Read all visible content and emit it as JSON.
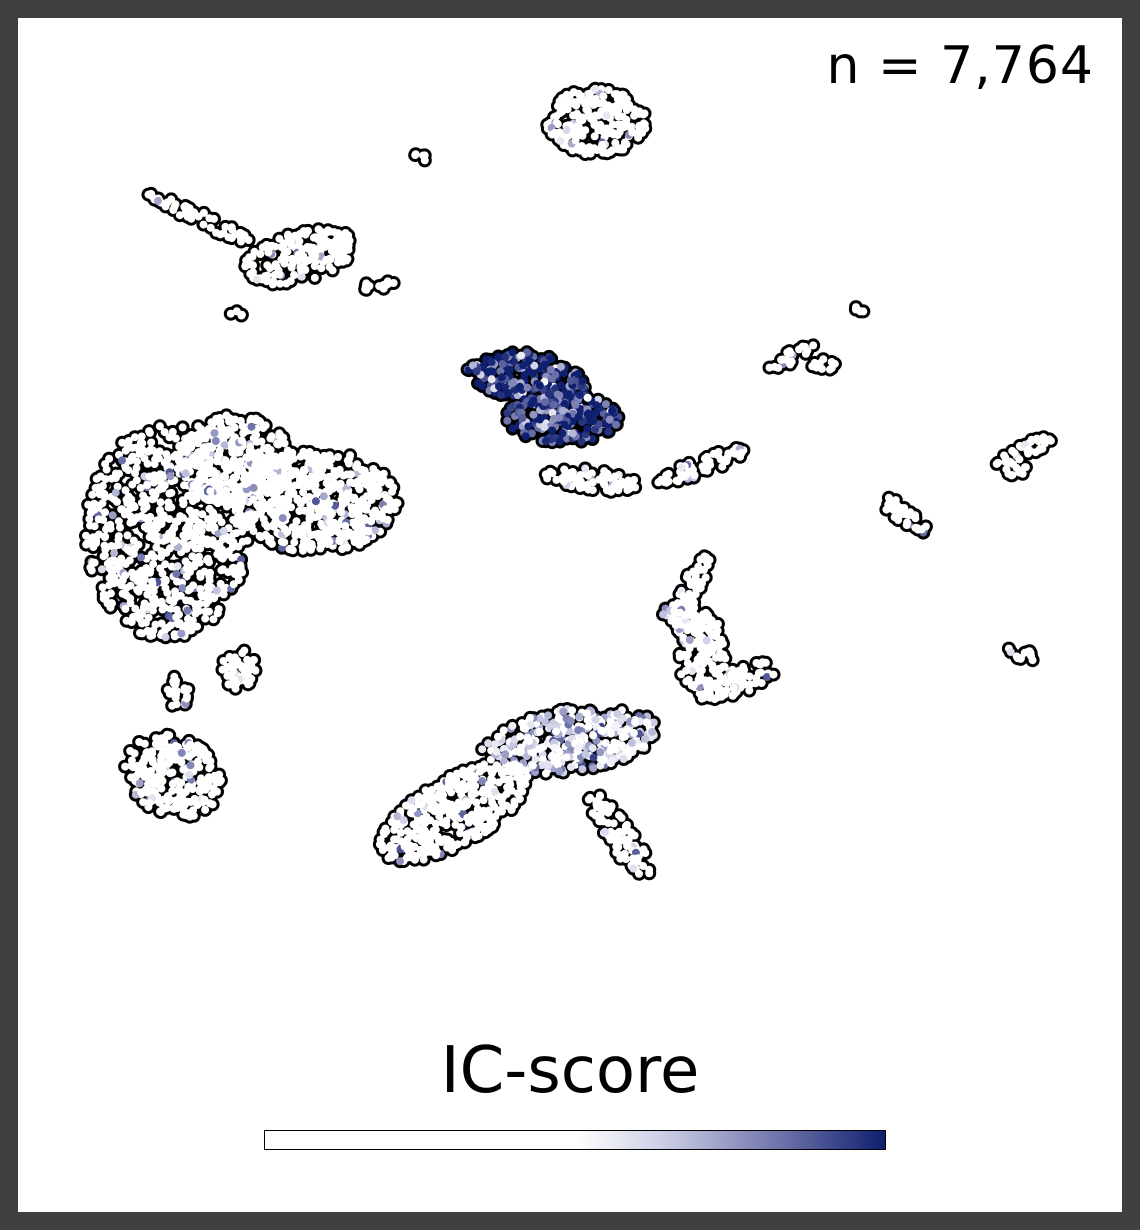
{
  "chart_data": {
    "type": "scatter",
    "title": "",
    "xlabel": "",
    "ylabel": "",
    "grid": false,
    "annotation": "n = 7,764",
    "colorbar": {
      "label": "IC-score",
      "colors": [
        "#ffffff",
        "#ffffff",
        "#c9cbe3",
        "#7478ad",
        "#0f2070"
      ],
      "stops": [
        0,
        0.5,
        0.65,
        0.82,
        1
      ]
    },
    "clusters": [
      {
        "cx": 0.524,
        "cy": 0.087,
        "rx": 0.048,
        "ry": 0.03,
        "angle": 0,
        "score": 0.02
      },
      {
        "cx": 0.255,
        "cy": 0.2,
        "rx": 0.055,
        "ry": 0.022,
        "angle": -15,
        "score": 0.05
      },
      {
        "cx": 0.165,
        "cy": 0.168,
        "rx": 0.055,
        "ry": 0.006,
        "angle": 25,
        "score": 0.0
      },
      {
        "cx": 0.46,
        "cy": 0.3,
        "rx": 0.058,
        "ry": 0.022,
        "angle": 10,
        "score": 0.92
      },
      {
        "cx": 0.494,
        "cy": 0.335,
        "rx": 0.055,
        "ry": 0.022,
        "angle": 0,
        "score": 0.92
      },
      {
        "cx": 0.52,
        "cy": 0.387,
        "rx": 0.045,
        "ry": 0.01,
        "angle": 5,
        "score": 0.05
      },
      {
        "cx": 0.62,
        "cy": 0.375,
        "rx": 0.045,
        "ry": 0.008,
        "angle": -20,
        "score": 0.0
      },
      {
        "cx": 0.135,
        "cy": 0.43,
        "rx": 0.078,
        "ry": 0.095,
        "angle": 0,
        "score": 0.06
      },
      {
        "cx": 0.27,
        "cy": 0.405,
        "rx": 0.078,
        "ry": 0.045,
        "angle": 0,
        "score": 0.03
      },
      {
        "cx": 0.195,
        "cy": 0.37,
        "rx": 0.055,
        "ry": 0.04,
        "angle": 0,
        "score": 0.04
      },
      {
        "cx": 0.2,
        "cy": 0.545,
        "rx": 0.018,
        "ry": 0.018,
        "angle": 0,
        "score": 0.04
      },
      {
        "cx": 0.14,
        "cy": 0.635,
        "rx": 0.048,
        "ry": 0.035,
        "angle": 25,
        "score": 0.12
      },
      {
        "cx": 0.145,
        "cy": 0.565,
        "rx": 0.01,
        "ry": 0.015,
        "angle": 0,
        "score": 0.0
      },
      {
        "cx": 0.5,
        "cy": 0.605,
        "rx": 0.085,
        "ry": 0.028,
        "angle": -8,
        "score": 0.55
      },
      {
        "cx": 0.395,
        "cy": 0.665,
        "rx": 0.08,
        "ry": 0.03,
        "angle": -30,
        "score": 0.05
      },
      {
        "cx": 0.545,
        "cy": 0.685,
        "rx": 0.05,
        "ry": 0.012,
        "angle": 55,
        "score": 0.1
      },
      {
        "cx": 0.655,
        "cy": 0.555,
        "rx": 0.038,
        "ry": 0.012,
        "angle": -20,
        "score": 0.1
      },
      {
        "cx": 0.62,
        "cy": 0.535,
        "rx": 0.022,
        "ry": 0.04,
        "angle": 0,
        "score": 0.03
      },
      {
        "cx": 0.61,
        "cy": 0.48,
        "rx": 0.01,
        "ry": 0.04,
        "angle": 20,
        "score": 0.0
      },
      {
        "cx": 0.6,
        "cy": 0.5,
        "rx": 0.02,
        "ry": 0.012,
        "angle": 0,
        "score": 0.0
      },
      {
        "cx": 0.8,
        "cy": 0.415,
        "rx": 0.03,
        "ry": 0.008,
        "angle": 35,
        "score": 0.0
      },
      {
        "cx": 0.912,
        "cy": 0.362,
        "rx": 0.032,
        "ry": 0.007,
        "angle": -25,
        "score": 0.0
      },
      {
        "cx": 0.905,
        "cy": 0.378,
        "rx": 0.012,
        "ry": 0.006,
        "angle": 0,
        "score": 0.0
      },
      {
        "cx": 0.908,
        "cy": 0.532,
        "rx": 0.015,
        "ry": 0.006,
        "angle": 20,
        "score": 0.2
      },
      {
        "cx": 0.7,
        "cy": 0.284,
        "rx": 0.025,
        "ry": 0.006,
        "angle": -30,
        "score": 0.0
      },
      {
        "cx": 0.73,
        "cy": 0.29,
        "rx": 0.012,
        "ry": 0.006,
        "angle": 0,
        "score": 0.1
      },
      {
        "cx": 0.76,
        "cy": 0.245,
        "rx": 0.007,
        "ry": 0.005,
        "angle": 0,
        "score": 0.0
      },
      {
        "cx": 0.366,
        "cy": 0.115,
        "rx": 0.007,
        "ry": 0.005,
        "angle": 0,
        "score": 0.0
      },
      {
        "cx": 0.198,
        "cy": 0.249,
        "rx": 0.006,
        "ry": 0.005,
        "angle": 0,
        "score": 0.0
      },
      {
        "cx": 0.326,
        "cy": 0.224,
        "rx": 0.018,
        "ry": 0.005,
        "angle": 0,
        "score": 0.0
      }
    ]
  }
}
